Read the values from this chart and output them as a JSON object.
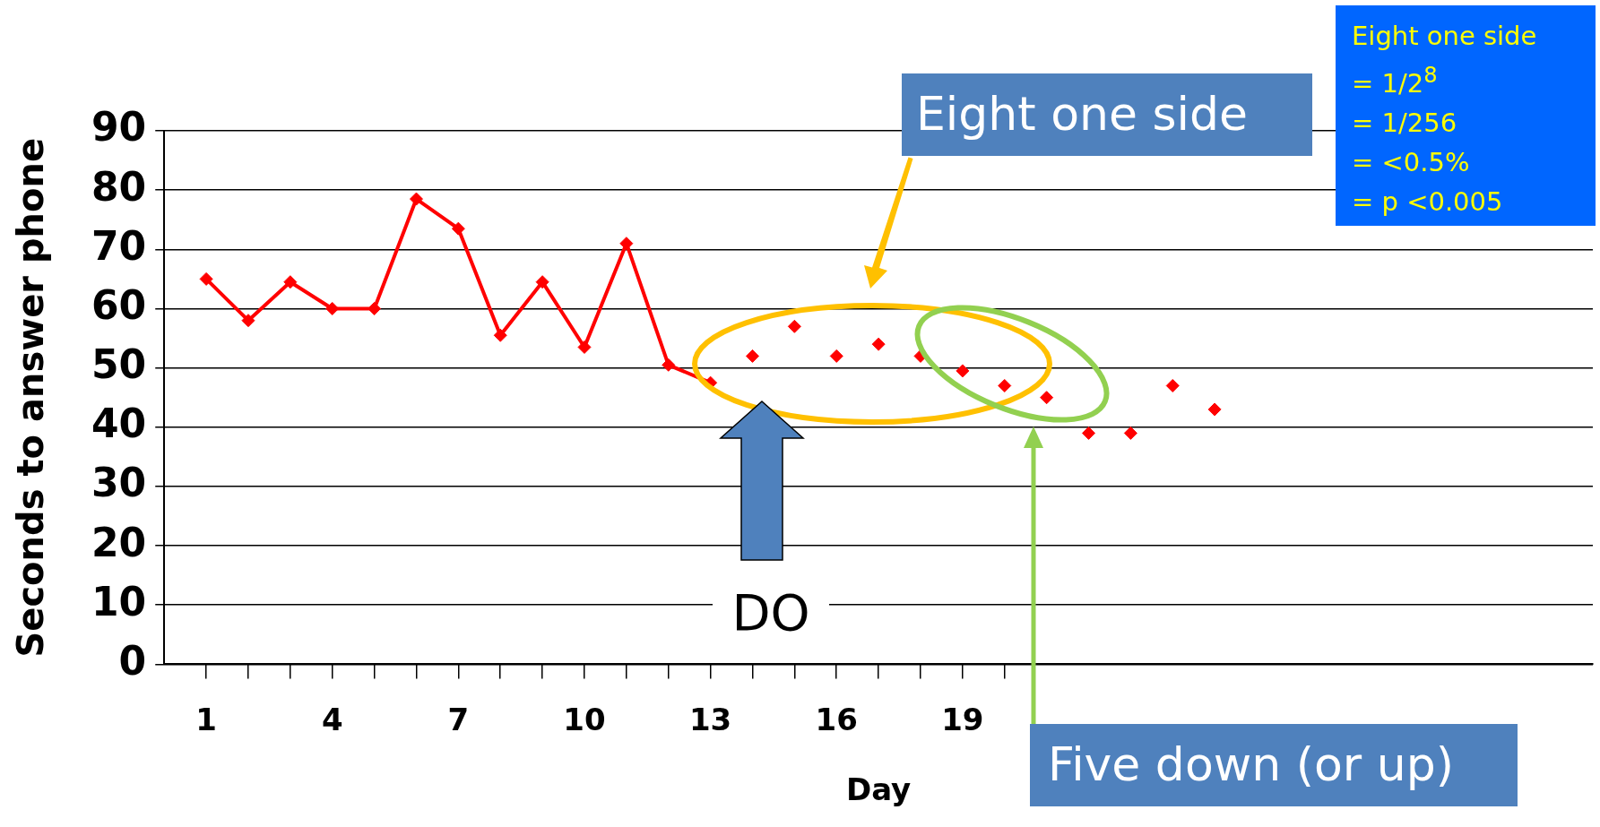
{
  "chart_data": {
    "type": "line",
    "xlabel": "Day",
    "ylabel": "Seconds to answer phone",
    "xlim": [
      0,
      34
    ],
    "xticks": [
      1,
      {
        "value": 2,
        "label": null
      },
      {
        "value": 3,
        "label": null
      },
      4,
      {
        "value": 5,
        "label": null
      },
      {
        "value": 6,
        "label": null
      },
      7,
      {
        "value": 8,
        "label": null
      },
      {
        "value": 9,
        "label": null
      },
      10,
      {
        "value": 11,
        "label": null
      },
      {
        "value": 12,
        "label": null
      },
      13,
      {
        "value": 14,
        "label": null
      },
      {
        "value": 15,
        "label": null
      },
      16,
      {
        "value": 17,
        "label": null
      },
      {
        "value": 18,
        "label": null
      },
      19,
      {
        "value": 20,
        "label": null
      }
    ],
    "ylim": [
      0,
      90
    ],
    "yticks": [
      0,
      10,
      20,
      30,
      40,
      50,
      60,
      70,
      80,
      90
    ],
    "grid": "y",
    "legend": false,
    "marker": "diamond",
    "series": [
      {
        "type": "line",
        "color": "#ff0000",
        "x": [
          1,
          2,
          3,
          4,
          5,
          6,
          7,
          8,
          9,
          10,
          11,
          12,
          13
        ],
        "values": [
          65,
          58,
          64.5,
          60,
          60,
          78.5,
          73.5,
          55.5,
          64.5,
          53.5,
          71,
          50.5,
          47.5
        ]
      },
      {
        "type": "scatter",
        "color": "#ff0000",
        "x": [
          14,
          15,
          16,
          17,
          18,
          19,
          20,
          21,
          22,
          23,
          24,
          25
        ],
        "values": [
          52,
          57,
          52,
          54,
          52,
          49.5,
          47,
          45,
          39,
          39,
          47,
          43
        ]
      }
    ],
    "annotations": [
      "Eight one side",
      "Five down (or up)",
      "DO",
      "Eight one side\n= 1/2$^{8}$\n= 1/256\n= <0.5%\n= p <0.005"
    ]
  }
}
